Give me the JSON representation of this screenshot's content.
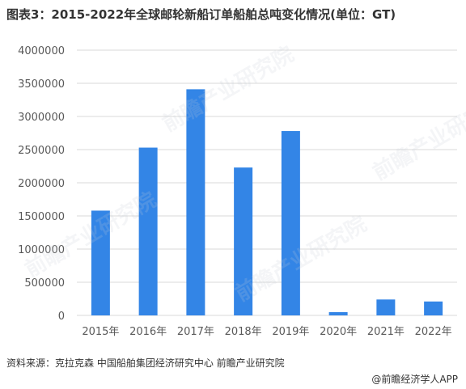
{
  "title": "图表3：2015-2022年全球邮轮新船订单船舶总吨变化情况(单位：GT)",
  "source": "资料来源：克拉克森  中国船舶集团经济研究中心  前瞻产业研究院",
  "brand": "@前瞻经济学人APP",
  "watermark": "前瞻产业研究院",
  "colors": {
    "bar": "#3385e6",
    "grid": "#d9d9d9",
    "text": "#595959"
  },
  "chart_data": {
    "type": "bar",
    "categories": [
      "2015年",
      "2016年",
      "2017年",
      "2018年",
      "2019年",
      "2020年",
      "2021年",
      "2022年"
    ],
    "values": [
      1580000,
      2530000,
      3410000,
      2230000,
      2780000,
      50000,
      240000,
      210000
    ],
    "ylim": [
      0,
      4000000
    ],
    "yticks": [
      "0",
      "500000",
      "1000000",
      "1500000",
      "2000000",
      "2500000",
      "3000000",
      "3500000",
      "4000000"
    ],
    "grid": true,
    "legend": "none"
  }
}
